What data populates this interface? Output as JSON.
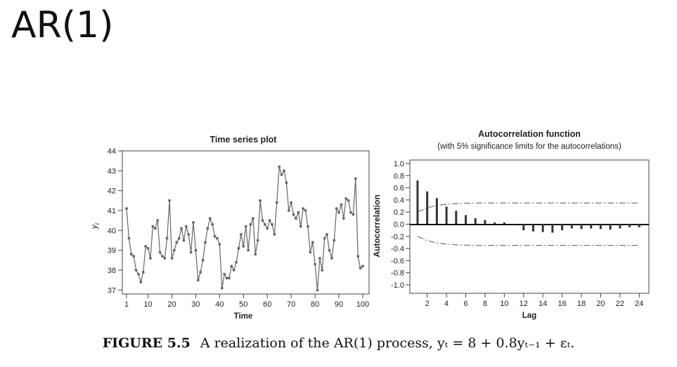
{
  "slide": {
    "title": "AR(1)"
  },
  "caption": {
    "label": "FIGURE 5.5",
    "text": "A realization of the AR(1) process, yₜ = 8 + 0.8yₜ₋₁ + εₜ."
  },
  "chart_data": [
    {
      "type": "line",
      "title": "Time series plot",
      "xlabel": "Time",
      "ylabel": "yt",
      "xlim": [
        1,
        100
      ],
      "ylim": [
        36.8,
        44
      ],
      "xticks": [
        1,
        10,
        20,
        30,
        40,
        50,
        60,
        70,
        80,
        90,
        100
      ],
      "yticks": [
        37,
        38,
        39,
        40,
        41,
        42,
        43,
        44
      ],
      "markers": true,
      "grid": false,
      "x": [
        1,
        2,
        3,
        4,
        5,
        6,
        7,
        8,
        9,
        10,
        11,
        12,
        13,
        14,
        15,
        16,
        17,
        18,
        19,
        20,
        21,
        22,
        23,
        24,
        25,
        26,
        27,
        28,
        29,
        30,
        31,
        32,
        33,
        34,
        35,
        36,
        37,
        38,
        39,
        40,
        41,
        42,
        43,
        44,
        45,
        46,
        47,
        48,
        49,
        50,
        51,
        52,
        53,
        54,
        55,
        56,
        57,
        58,
        59,
        60,
        61,
        62,
        63,
        64,
        65,
        66,
        67,
        68,
        69,
        70,
        71,
        72,
        73,
        74,
        75,
        76,
        77,
        78,
        79,
        80,
        81,
        82,
        83,
        84,
        85,
        86,
        87,
        88,
        89,
        90,
        91,
        92,
        93,
        94,
        95,
        96,
        97,
        98,
        99,
        100
      ],
      "values": [
        41.1,
        39.6,
        38.8,
        38.7,
        38.0,
        37.8,
        37.4,
        37.9,
        39.2,
        39.1,
        38.6,
        40.2,
        40.1,
        40.5,
        38.9,
        38.7,
        38.6,
        39.6,
        41.5,
        38.6,
        39.0,
        39.4,
        39.6,
        40.1,
        39.5,
        40.2,
        39.8,
        38.9,
        40.4,
        39.0,
        37.5,
        37.9,
        38.5,
        39.4,
        40.1,
        40.6,
        40.3,
        39.7,
        39.6,
        39.3,
        37.1,
        37.8,
        37.6,
        37.6,
        38.2,
        38.0,
        38.4,
        39.1,
        39.8,
        39.2,
        40.2,
        39.0,
        40.3,
        40.6,
        38.8,
        39.5,
        41.5,
        40.5,
        40.3,
        40.1,
        40.5,
        40.3,
        39.8,
        41.4,
        43.2,
        42.8,
        43.0,
        42.4,
        41.0,
        41.4,
        40.8,
        40.6,
        40.9,
        40.2,
        41.1,
        41.0,
        40.2,
        38.9,
        39.4,
        38.3,
        37.0,
        38.6,
        38.0,
        39.6,
        39.8,
        39.0,
        38.6,
        39.5,
        41.1,
        40.9,
        41.3,
        40.6,
        41.6,
        41.5,
        40.9,
        40.8,
        42.6,
        38.7,
        38.1,
        38.2
      ]
    },
    {
      "type": "bar",
      "title": "Autocorrelation function",
      "subtitle": "(with 5% significance limits for the autocorrelations)",
      "xlabel": "Lag",
      "ylabel": "Autocorrelation",
      "xlim": [
        0.2,
        25
      ],
      "ylim": [
        -1.0,
        1.0
      ],
      "xticks": [
        2,
        4,
        6,
        8,
        10,
        12,
        14,
        16,
        18,
        20,
        22,
        24
      ],
      "yticks": [
        "1.0",
        "0.8",
        "0.6",
        "0.4",
        "0.2",
        "0.0",
        "-0.2",
        "-0.4",
        "-0.6",
        "-0.8",
        "-1.0"
      ],
      "categories": [
        1,
        2,
        3,
        4,
        5,
        6,
        7,
        8,
        9,
        10,
        11,
        12,
        13,
        14,
        15,
        16,
        17,
        18,
        19,
        20,
        21,
        22,
        23,
        24
      ],
      "values": [
        0.72,
        0.54,
        0.43,
        0.29,
        0.22,
        0.15,
        0.1,
        0.07,
        0.03,
        0.03,
        -0.02,
        -0.1,
        -0.12,
        -0.13,
        -0.14,
        -0.1,
        -0.07,
        -0.08,
        -0.07,
        -0.08,
        -0.09,
        -0.07,
        -0.05,
        -0.05
      ],
      "significance_limits": {
        "upper": [
          0.2,
          0.27,
          0.31,
          0.33,
          0.34,
          0.345,
          0.35,
          0.35,
          0.35,
          0.35,
          0.35,
          0.35,
          0.35,
          0.35,
          0.35,
          0.35,
          0.35,
          0.35,
          0.35,
          0.35,
          0.35,
          0.35,
          0.35,
          0.35
        ],
        "lower": [
          -0.2,
          -0.27,
          -0.31,
          -0.33,
          -0.34,
          -0.345,
          -0.35,
          -0.35,
          -0.35,
          -0.35,
          -0.35,
          -0.35,
          -0.35,
          -0.35,
          -0.35,
          -0.35,
          -0.35,
          -0.35,
          -0.35,
          -0.35,
          -0.35,
          -0.35,
          -0.35,
          -0.35
        ]
      },
      "grid": false
    }
  ]
}
